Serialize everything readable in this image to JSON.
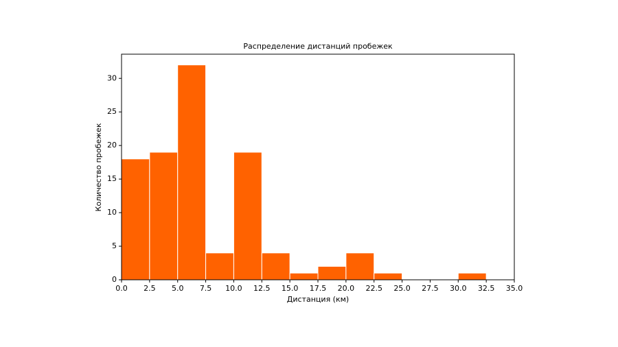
{
  "chart_data": {
    "type": "histogram",
    "title": "Распределение дистанций пробежек",
    "x_label": "Дистанция (км)",
    "y_label": "Количество пробежек",
    "bins": [
      0,
      2.5,
      5,
      7.5,
      10,
      12.5,
      15,
      17.5,
      20,
      22.5,
      25,
      27.5,
      30,
      32.5
    ],
    "values": [
      18,
      19,
      32,
      4,
      19,
      4,
      1,
      2,
      4,
      1,
      0,
      0,
      1
    ],
    "color": "#ff6200",
    "edgecolor": "#ffffff",
    "xlim": [
      0,
      35
    ],
    "ylim": [
      0,
      33.6
    ],
    "xticks": [
      {
        "value": 0,
        "label": "0.0"
      },
      2.5,
      {
        "value": 5,
        "label": "5.0"
      },
      7.5,
      {
        "value": 10,
        "label": "10.0"
      },
      12.5,
      {
        "value": 15,
        "label": "15.0"
      },
      17.5,
      {
        "value": 20,
        "label": "20.0"
      },
      22.5,
      {
        "value": 25,
        "label": "25.0"
      },
      27.5,
      {
        "value": 30,
        "label": "30.0"
      },
      32.5,
      {
        "value": 35,
        "label": "35.0"
      }
    ],
    "yticks": [
      0,
      5,
      10,
      15,
      20,
      25,
      30
    ]
  }
}
